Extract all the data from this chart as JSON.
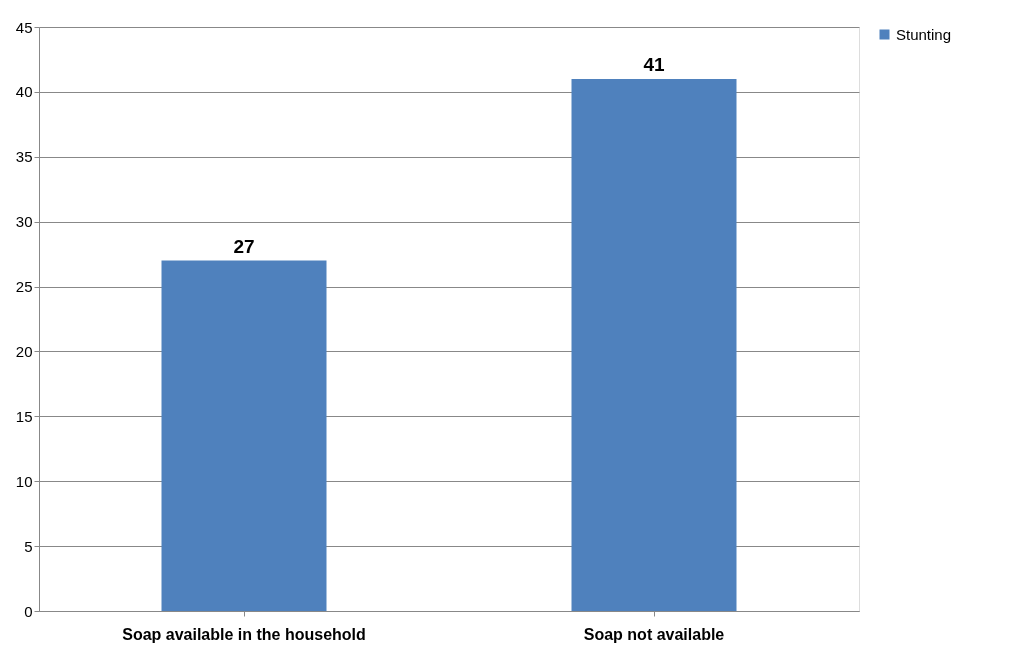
{
  "chart_data": {
    "type": "bar",
    "categories": [
      "Soap available in the household",
      "Soap not available"
    ],
    "series": [
      {
        "name": "Stunting",
        "color": "#4f81bd",
        "values": [
          27,
          41
        ]
      }
    ],
    "ylim": [
      0,
      45
    ],
    "yticks": [
      0,
      5,
      10,
      15,
      20,
      25,
      30,
      35,
      40,
      45
    ],
    "grid": "y",
    "legend": "right",
    "data_labels": true
  }
}
